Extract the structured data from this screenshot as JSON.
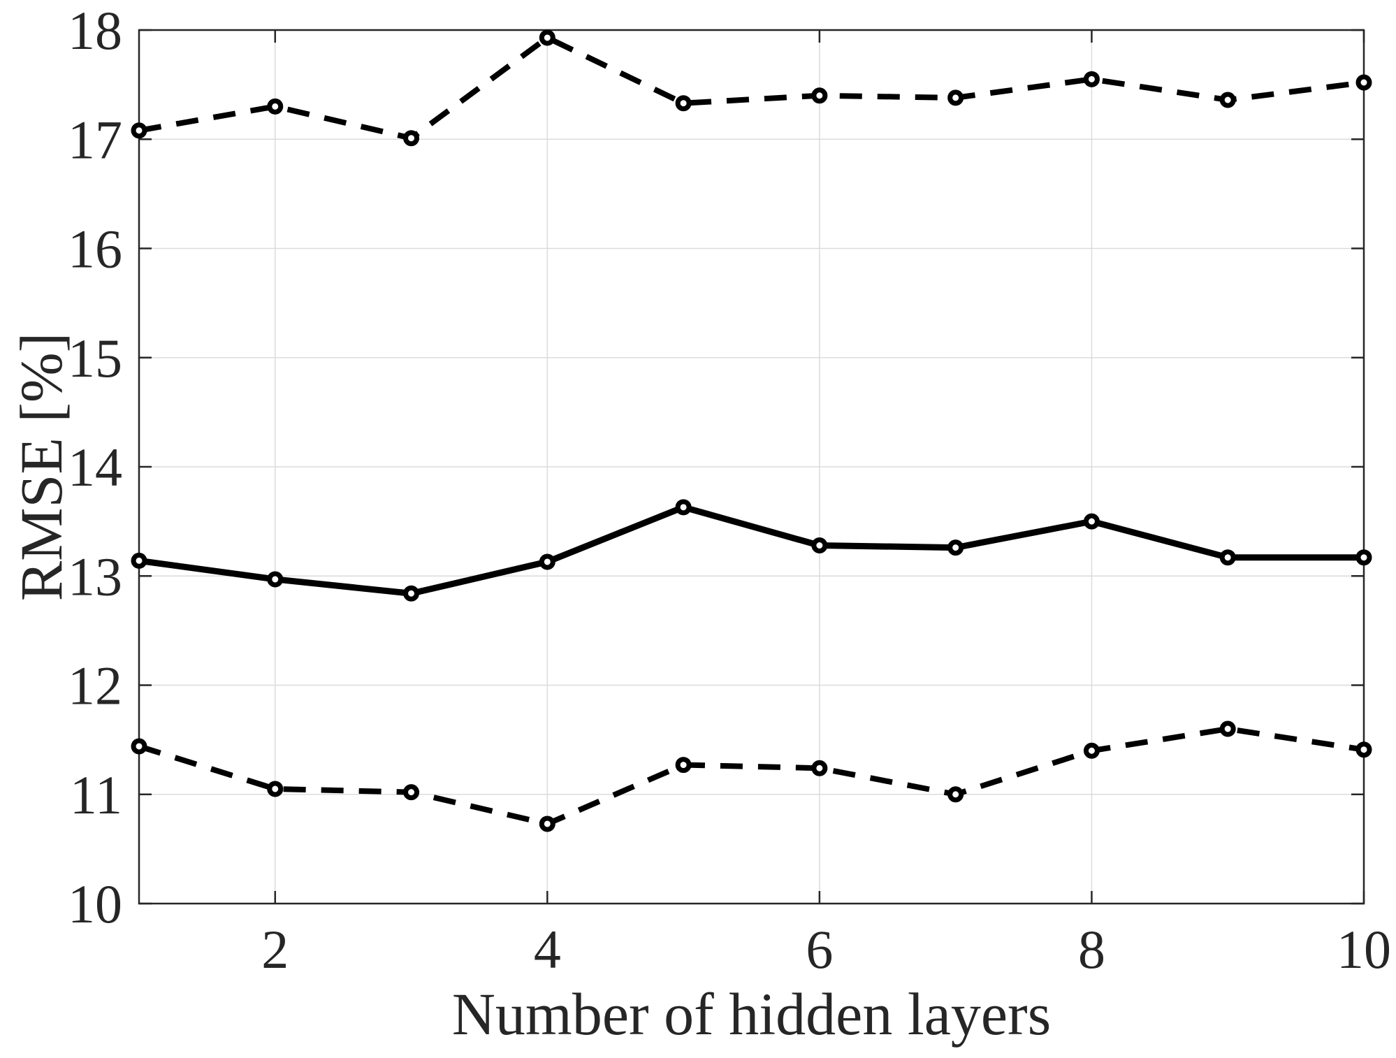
{
  "figure": {
    "background": "#ffffff",
    "title": ""
  },
  "chart_data": {
    "type": "line",
    "x": [
      1,
      2,
      3,
      4,
      5,
      6,
      7,
      8,
      9,
      10
    ],
    "series": [
      {
        "name": "upper-bound-dashed",
        "style": "dashed",
        "values": [
          17.08,
          17.3,
          17.01,
          17.93,
          17.33,
          17.4,
          17.38,
          17.55,
          17.36,
          17.52
        ]
      },
      {
        "name": "mean-solid",
        "style": "solid",
        "values": [
          13.14,
          12.97,
          12.84,
          13.13,
          13.63,
          13.28,
          13.26,
          13.5,
          13.17,
          13.17
        ]
      },
      {
        "name": "lower-bound-dashed",
        "style": "dashed",
        "values": [
          11.44,
          11.05,
          11.02,
          10.73,
          11.27,
          11.24,
          11.0,
          11.4,
          11.6,
          11.41
        ]
      }
    ],
    "xlabel": "Number of hidden layers",
    "ylabel": "RMSE [%]",
    "xlim": [
      1,
      10
    ],
    "ylim": [
      10,
      18
    ],
    "xticks": [
      2,
      4,
      6,
      8,
      10
    ],
    "yticks": [
      10,
      11,
      12,
      13,
      14,
      15,
      16,
      17,
      18
    ],
    "grid": true,
    "legend": "none",
    "marker": "open-circle",
    "colors": {
      "line": "#000000",
      "marker_fill": "#ffffff",
      "grid": "#dbdbdb",
      "axis": "#262626",
      "tick_text": "#262626"
    }
  }
}
